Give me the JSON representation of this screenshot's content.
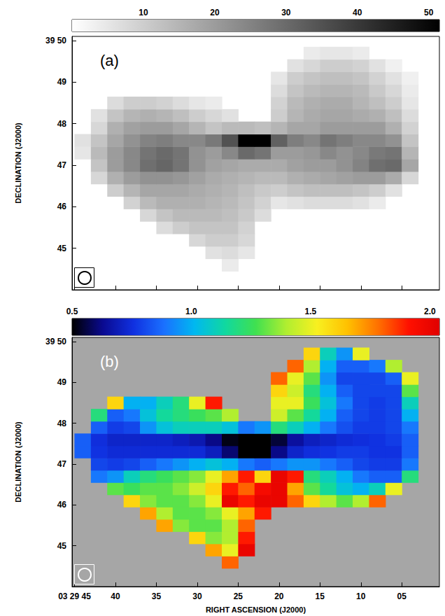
{
  "chart_data": [
    {
      "type": "heatmap",
      "title": "(a)",
      "ylabel": "DECLINATION (J2000)",
      "x": [
        44,
        42,
        40,
        38,
        36,
        34,
        32,
        30,
        28,
        26,
        24,
        22,
        20,
        18,
        16,
        14,
        12,
        10,
        8,
        6,
        4
      ],
      "y": [
        44.6,
        44.9,
        45.2,
        45.5,
        45.8,
        46.1,
        46.4,
        46.7,
        47.0,
        47.3,
        47.6,
        47.9,
        48.2,
        48.5,
        48.8,
        49.1,
        49.4,
        49.7
      ],
      "values": [
        [
          null,
          null,
          null,
          null,
          null,
          null,
          null,
          null,
          null,
          4,
          null,
          null,
          null,
          null,
          null,
          null,
          null,
          null,
          null,
          null,
          null
        ],
        [
          null,
          null,
          null,
          null,
          null,
          null,
          null,
          null,
          6,
          7,
          5,
          null,
          null,
          null,
          null,
          null,
          null,
          null,
          null,
          null,
          null
        ],
        [
          null,
          null,
          null,
          null,
          null,
          null,
          null,
          8,
          10,
          10,
          8,
          null,
          null,
          null,
          null,
          null,
          null,
          null,
          null,
          null,
          null
        ],
        [
          null,
          null,
          null,
          null,
          null,
          7,
          10,
          12,
          12,
          12,
          9,
          null,
          null,
          null,
          null,
          null,
          null,
          null,
          null,
          null,
          null
        ],
        [
          null,
          null,
          null,
          null,
          8,
          12,
          14,
          14,
          14,
          13,
          11,
          7,
          null,
          null,
          null,
          null,
          null,
          null,
          null,
          null,
          null
        ],
        [
          null,
          null,
          null,
          9,
          14,
          16,
          16,
          16,
          15,
          14,
          12,
          9,
          5,
          6,
          7,
          7,
          7,
          6,
          4,
          null,
          null
        ],
        [
          null,
          null,
          10,
          15,
          18,
          18,
          18,
          17,
          16,
          15,
          13,
          11,
          10,
          12,
          13,
          13,
          13,
          12,
          10,
          6,
          null
        ],
        [
          null,
          8,
          16,
          20,
          22,
          22,
          21,
          19,
          17,
          16,
          15,
          14,
          14,
          16,
          17,
          18,
          19,
          20,
          20,
          17,
          8
        ],
        [
          null,
          12,
          20,
          24,
          29,
          31,
          28,
          22,
          19,
          18,
          17,
          17,
          17,
          19,
          20,
          20,
          22,
          25,
          29,
          30,
          18
        ],
        [
          5,
          14,
          20,
          24,
          28,
          30,
          28,
          22,
          20,
          24,
          30,
          28,
          20,
          20,
          21,
          24,
          22,
          24,
          27,
          28,
          15
        ],
        [
          6,
          12,
          18,
          22,
          25,
          26,
          24,
          24,
          27,
          35,
          60,
          58,
          32,
          26,
          24,
          28,
          26,
          24,
          24,
          22,
          12
        ],
        [
          null,
          8,
          16,
          19,
          20,
          20,
          18,
          15,
          12,
          14,
          14,
          13,
          15,
          18,
          18,
          20,
          20,
          20,
          20,
          16,
          9
        ],
        [
          null,
          6,
          12,
          15,
          16,
          15,
          13,
          10,
          8,
          6,
          null,
          null,
          10,
          15,
          17,
          18,
          18,
          17,
          16,
          13,
          7
        ],
        [
          null,
          null,
          7,
          10,
          10,
          9,
          7,
          5,
          4,
          null,
          null,
          null,
          9,
          14,
          16,
          17,
          17,
          15,
          13,
          10,
          5
        ],
        [
          null,
          null,
          null,
          null,
          null,
          null,
          null,
          null,
          null,
          null,
          null,
          null,
          7,
          12,
          14,
          15,
          15,
          14,
          11,
          8,
          4
        ],
        [
          null,
          null,
          null,
          null,
          null,
          null,
          null,
          null,
          null,
          null,
          null,
          null,
          5,
          10,
          12,
          13,
          13,
          12,
          9,
          6,
          3
        ],
        [
          null,
          null,
          null,
          null,
          null,
          null,
          null,
          null,
          null,
          null,
          null,
          null,
          null,
          6,
          8,
          10,
          10,
          9,
          6,
          3,
          null
        ],
        [
          null,
          null,
          null,
          null,
          null,
          null,
          null,
          null,
          null,
          null,
          null,
          null,
          null,
          null,
          4,
          5,
          5,
          4,
          null,
          null,
          null
        ]
      ],
      "xlim": [
        45.3,
        0.4
      ],
      "xticks": [
        {
          "value": 45,
          "label": "03 29 45"
        },
        40,
        35,
        30,
        25,
        20,
        15,
        10,
        {
          "value": 5,
          "label": "05"
        }
      ],
      "ylim": [
        44.0,
        50.1
      ],
      "yticks": [
        45,
        46,
        47,
        48,
        49,
        {
          "value": 50,
          "label": "39 50"
        }
      ],
      "tick_labels": "y",
      "colorbar": {
        "lim": [
          0,
          51.5
        ],
        "ticks": [
          10,
          20,
          30,
          40,
          50
        ],
        "colors": [
          "#ffffff",
          "#000000"
        ]
      }
    },
    {
      "type": "heatmap",
      "title": "(b)",
      "xlabel": "RIGHT ASCENSION (J2000)",
      "ylabel": "DECLINATION (J2000)",
      "x": [
        44,
        42,
        40,
        38,
        36,
        34,
        32,
        30,
        28,
        26,
        24,
        22,
        20,
        18,
        16,
        14,
        12,
        10,
        8,
        6,
        4
      ],
      "y": [
        44.6,
        44.9,
        45.2,
        45.5,
        45.8,
        46.1,
        46.4,
        46.7,
        47.0,
        47.3,
        47.6,
        47.9,
        48.2,
        48.5,
        48.8,
        49.1,
        49.4,
        49.7
      ],
      "values": [
        [
          null,
          null,
          null,
          null,
          null,
          null,
          null,
          null,
          null,
          1.8,
          null,
          null,
          null,
          null,
          null,
          null,
          null,
          null,
          null,
          null,
          null
        ],
        [
          null,
          null,
          null,
          null,
          null,
          null,
          null,
          null,
          1.7,
          1.5,
          2.0,
          null,
          null,
          null,
          null,
          null,
          null,
          null,
          null,
          null,
          null
        ],
        [
          null,
          null,
          null,
          null,
          null,
          null,
          null,
          1.6,
          1.35,
          1.4,
          1.9,
          null,
          null,
          null,
          null,
          null,
          null,
          null,
          null,
          null,
          null
        ],
        [
          null,
          null,
          null,
          null,
          null,
          1.7,
          1.35,
          1.3,
          1.3,
          1.4,
          1.8,
          null,
          null,
          null,
          null,
          null,
          null,
          null,
          null,
          null,
          null
        ],
        [
          null,
          null,
          null,
          null,
          1.7,
          1.4,
          1.3,
          1.3,
          1.35,
          1.5,
          1.7,
          1.9,
          null,
          null,
          null,
          null,
          null,
          null,
          null,
          null,
          null
        ],
        [
          null,
          null,
          null,
          1.6,
          1.35,
          1.3,
          1.3,
          1.35,
          1.5,
          2.0,
          1.9,
          2.0,
          2.0,
          1.8,
          1.6,
          1.4,
          1.3,
          1.4,
          1.8,
          null,
          null
        ],
        [
          null,
          null,
          1.3,
          1.25,
          1.3,
          1.3,
          1.35,
          1.45,
          1.6,
          1.9,
          1.8,
          1.95,
          2.0,
          1.7,
          1.3,
          1.15,
          1.05,
          1.0,
          1.1,
          1.5,
          null
        ],
        [
          null,
          0.9,
          0.95,
          1.1,
          1.2,
          1.25,
          1.3,
          1.35,
          1.5,
          1.7,
          1.9,
          1.6,
          2.0,
          1.9,
          1.2,
          1.1,
          1.0,
          0.9,
          0.85,
          0.85,
          1.2
        ],
        [
          null,
          0.8,
          0.78,
          0.8,
          0.85,
          0.9,
          0.95,
          1.0,
          1.05,
          1.0,
          0.9,
          0.85,
          0.9,
          0.95,
          0.95,
          0.9,
          0.85,
          0.8,
          0.78,
          0.78,
          0.9
        ],
        [
          0.85,
          0.76,
          0.74,
          0.74,
          0.74,
          0.74,
          0.74,
          0.74,
          0.7,
          0.6,
          0.5,
          0.5,
          0.62,
          0.72,
          0.75,
          0.76,
          0.78,
          0.78,
          0.76,
          0.76,
          0.85
        ],
        [
          0.85,
          0.75,
          0.72,
          0.72,
          0.72,
          0.72,
          0.7,
          0.68,
          0.62,
          0.52,
          0.45,
          0.45,
          0.55,
          0.65,
          0.7,
          0.72,
          0.74,
          0.75,
          0.76,
          0.78,
          0.85
        ],
        [
          null,
          0.85,
          0.78,
          0.8,
          0.95,
          1.05,
          1.1,
          1.1,
          1.1,
          1.05,
          0.9,
          0.95,
          1.2,
          1.1,
          1.0,
          0.9,
          0.82,
          0.78,
          0.78,
          0.8,
          0.9
        ],
        [
          null,
          1.2,
          0.85,
          0.9,
          1.05,
          1.15,
          1.2,
          1.25,
          1.3,
          1.4,
          null,
          null,
          1.45,
          1.3,
          1.15,
          1.0,
          0.85,
          0.8,
          0.78,
          0.8,
          1.0
        ],
        [
          null,
          null,
          1.6,
          1.0,
          1.0,
          1.1,
          1.2,
          1.5,
          1.9,
          null,
          null,
          null,
          1.5,
          1.5,
          1.25,
          1.05,
          0.9,
          0.8,
          0.78,
          0.8,
          1.1
        ],
        [
          null,
          null,
          null,
          null,
          null,
          null,
          null,
          null,
          null,
          null,
          null,
          null,
          1.6,
          1.45,
          1.2,
          1.0,
          0.85,
          0.8,
          0.8,
          0.8,
          1.3
        ],
        [
          null,
          null,
          null,
          null,
          null,
          null,
          null,
          null,
          null,
          null,
          null,
          null,
          1.8,
          1.5,
          1.3,
          0.95,
          0.8,
          0.8,
          0.8,
          0.85,
          1.5
        ],
        [
          null,
          null,
          null,
          null,
          null,
          null,
          null,
          null,
          null,
          null,
          null,
          null,
          null,
          1.8,
          1.4,
          1.0,
          0.85,
          0.85,
          0.9,
          1.4,
          null
        ],
        [
          null,
          null,
          null,
          null,
          null,
          null,
          null,
          null,
          null,
          null,
          null,
          null,
          null,
          null,
          1.6,
          1.1,
          0.95,
          1.5,
          null,
          null,
          null
        ]
      ],
      "xlim": [
        45.3,
        0.4
      ],
      "xticks": [
        {
          "value": 45,
          "label": "03 29 45"
        },
        40,
        35,
        30,
        25,
        20,
        15,
        10,
        {
          "value": 5,
          "label": "05"
        }
      ],
      "ylim": [
        44.0,
        50.1
      ],
      "yticks": [
        45,
        46,
        47,
        48,
        49,
        {
          "value": 50,
          "label": "39 50"
        }
      ],
      "colorbar": {
        "lim": [
          0.5,
          2.04
        ],
        "ticks": [
          0.5,
          {
            "value": 1,
            "label": "1.0"
          },
          1.5,
          {
            "value": 2,
            "label": "2.0"
          }
        ],
        "colors": [
          "#000000",
          "#0a0a90",
          "#1030e0",
          "#1a70ff",
          "#00b8f0",
          "#10d8a0",
          "#40e050",
          "#b0ee30",
          "#f8f020",
          "#ffc000",
          "#ff7000",
          "#ff1000",
          "#e00000"
        ]
      }
    }
  ]
}
